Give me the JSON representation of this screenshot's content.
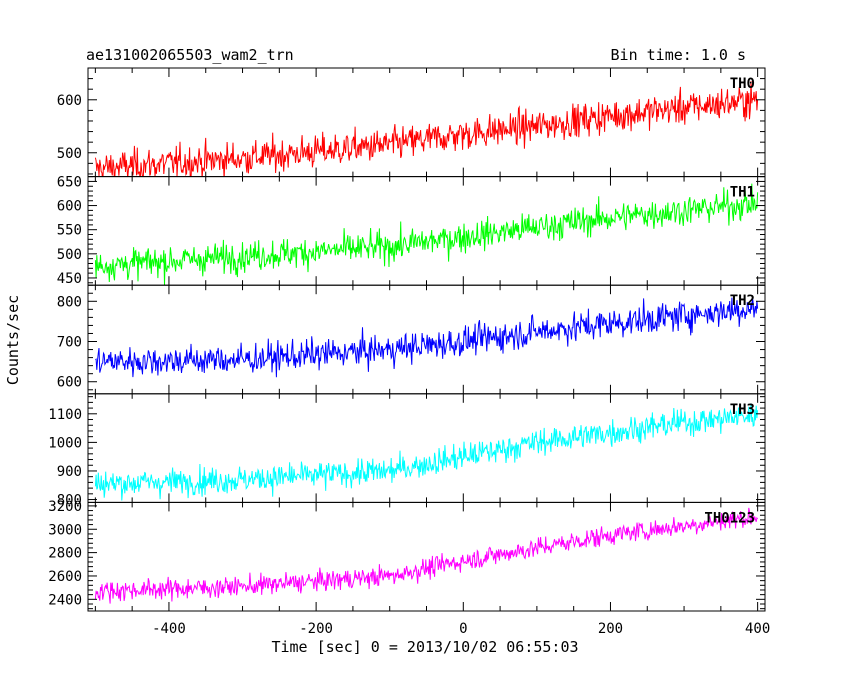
{
  "header": {
    "title_left": "ae131002065503_wam2_trn",
    "title_right": "Bin time: 1.0 s"
  },
  "chart_data": {
    "type": "line",
    "xlabel": "Time [sec] 0 = 2013/10/02 06:55:03",
    "ylabel": "Counts/sec",
    "xlim": [
      -510,
      410
    ],
    "xticks": [
      -400,
      -200,
      0,
      200,
      400
    ],
    "x_range": [
      -500,
      400
    ],
    "bin_time_s": 1.0,
    "panels": [
      {
        "name": "TH0",
        "color": "#ff0000",
        "ylim": [
          455,
          660
        ],
        "yticks": [
          500,
          600
        ],
        "trend": [
          [
            -500,
            470
          ],
          [
            -300,
            490
          ],
          [
            -100,
            515
          ],
          [
            0,
            535
          ],
          [
            100,
            550
          ],
          [
            200,
            570
          ],
          [
            300,
            585
          ],
          [
            400,
            600
          ]
        ],
        "noise": 40
      },
      {
        "name": "TH1",
        "color": "#00ff00",
        "ylim": [
          435,
          660
        ],
        "yticks": [
          450,
          500,
          550,
          600,
          650
        ],
        "trend": [
          [
            -500,
            475
          ],
          [
            -300,
            495
          ],
          [
            -100,
            515
          ],
          [
            0,
            535
          ],
          [
            100,
            555
          ],
          [
            200,
            575
          ],
          [
            300,
            590
          ],
          [
            400,
            605
          ]
        ],
        "noise": 40
      },
      {
        "name": "TH2",
        "color": "#0000ff",
        "ylim": [
          570,
          840
        ],
        "yticks": [
          600,
          700,
          800
        ],
        "trend": [
          [
            -500,
            650
          ],
          [
            -300,
            655
          ],
          [
            -100,
            680
          ],
          [
            0,
            700
          ],
          [
            100,
            725
          ],
          [
            200,
            745
          ],
          [
            300,
            765
          ],
          [
            400,
            785
          ]
        ],
        "noise": 48
      },
      {
        "name": "TH3",
        "color": "#00ffff",
        "ylim": [
          790,
          1170
        ],
        "yticks": [
          800,
          900,
          1000,
          1100
        ],
        "trend": [
          [
            -500,
            855
          ],
          [
            -300,
            870
          ],
          [
            -100,
            900
          ],
          [
            0,
            950
          ],
          [
            100,
            1000
          ],
          [
            200,
            1035
          ],
          [
            300,
            1070
          ],
          [
            400,
            1095
          ]
        ],
        "noise": 60
      },
      {
        "name": "TH0123",
        "color": "#ff00ff",
        "ylim": [
          2300,
          3230
        ],
        "yticks": [
          2400,
          2600,
          2800,
          3000,
          3200
        ],
        "trend": [
          [
            -500,
            2470
          ],
          [
            -300,
            2510
          ],
          [
            -100,
            2600
          ],
          [
            0,
            2730
          ],
          [
            100,
            2840
          ],
          [
            200,
            2950
          ],
          [
            300,
            3030
          ],
          [
            400,
            3110
          ]
        ],
        "noise": 110
      }
    ]
  }
}
